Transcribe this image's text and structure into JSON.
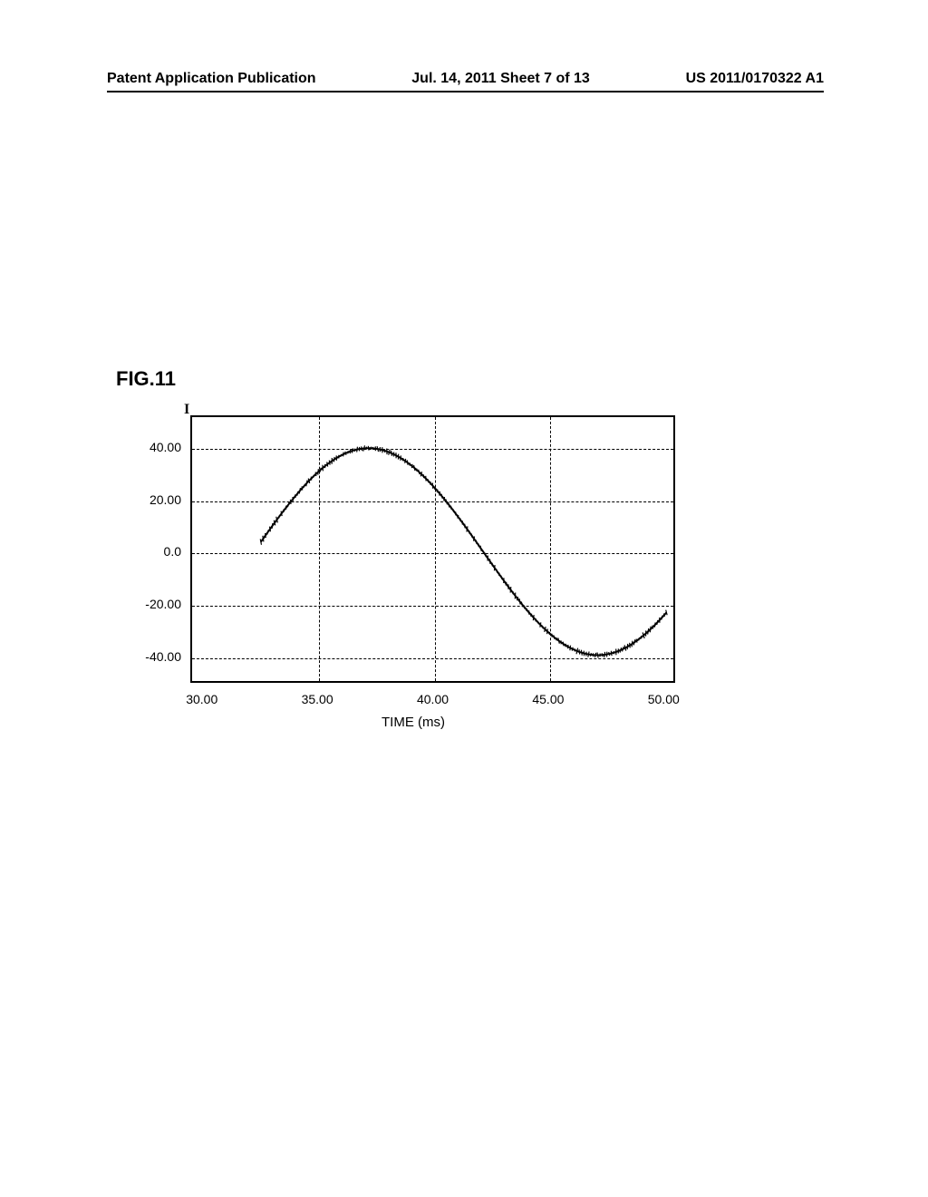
{
  "header": {
    "left": "Patent Application Publication",
    "center": "Jul. 14, 2011  Sheet 7 of 13",
    "right": "US 2011/0170322 A1"
  },
  "figure_label": "FIG.11",
  "chart": {
    "type": "line",
    "y_axis_symbol": "I",
    "x_axis_label": "TIME (ms)",
    "background_color": "#ffffff",
    "line_color": "#000000",
    "grid_color": "#000000",
    "border_color": "#000000",
    "line_width": 2,
    "xlim": [
      29.5,
      50.5
    ],
    "ylim": [
      -50,
      52
    ],
    "x_ticks": [
      30.0,
      35.0,
      40.0,
      45.0,
      50.0
    ],
    "x_tick_labels": [
      "30.00",
      "35.00",
      "40.00",
      "45.00",
      "50.00"
    ],
    "y_ticks": [
      -40.0,
      -20.0,
      0.0,
      20.0,
      40.0
    ],
    "y_tick_labels": [
      "-40.00",
      "-20.00",
      "0.0",
      "20.00",
      "40.00"
    ],
    "grid_x": [
      35.0,
      40.0,
      45.0
    ],
    "grid_y": [
      -40.0,
      -20.0,
      0.0,
      20.0,
      40.0
    ],
    "tick_fontsize": 14,
    "label_fontsize": 15,
    "series": {
      "x_start": 32.5,
      "x_end": 50.3,
      "x_step": 0.1,
      "amplitude": 40,
      "period": 20,
      "phase_peak_x": 37.2,
      "noise_amplitude": 2.5
    }
  }
}
